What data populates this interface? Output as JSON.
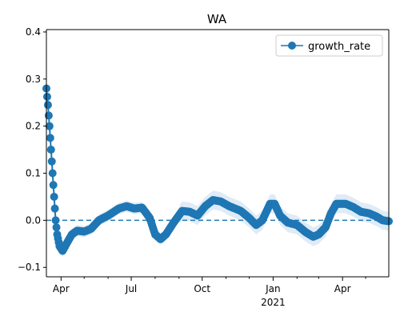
{
  "chart_data": {
    "type": "line",
    "title": "WA",
    "xlabel": "",
    "ylabel": "",
    "xlim": [
      "2020-03-13",
      "2021-05-31"
    ],
    "ylim": [
      -0.12,
      0.405
    ],
    "yticks": [
      -0.1,
      0.0,
      0.1,
      0.2,
      0.3,
      0.4
    ],
    "ytick_labels": [
      "−0.1",
      "0.0",
      "0.1",
      "0.2",
      "0.3",
      "0.4"
    ],
    "xticks_major": [
      {
        "date": "2020-04-01",
        "label": "Apr",
        "sublabel": ""
      },
      {
        "date": "2020-07-01",
        "label": "Jul",
        "sublabel": ""
      },
      {
        "date": "2020-10-01",
        "label": "Oct",
        "sublabel": ""
      },
      {
        "date": "2021-01-01",
        "label": "Jan",
        "sublabel": "2021"
      },
      {
        "date": "2021-04-01",
        "label": "Apr",
        "sublabel": ""
      }
    ],
    "xticks_minor": [
      "2020-05-01",
      "2020-06-01",
      "2020-08-01",
      "2020-09-01",
      "2020-11-01",
      "2020-12-01",
      "2021-02-01",
      "2021-03-01",
      "2021-05-01"
    ],
    "reference_line": {
      "y": 0.0,
      "style": "dashed",
      "color": "#1f77b4"
    },
    "legend": {
      "position": "top-right",
      "entries": [
        "growth_rate"
      ]
    },
    "grid": false,
    "series": [
      {
        "name": "growth_rate",
        "color": "#1f77b4",
        "marker": "circle",
        "band_color": "#dce9f5",
        "points": [
          {
            "date": "2020-03-13",
            "value": 0.28
          },
          {
            "date": "2020-03-15",
            "value": 0.245
          },
          {
            "date": "2020-03-17",
            "value": 0.2
          },
          {
            "date": "2020-03-19",
            "value": 0.15
          },
          {
            "date": "2020-03-21",
            "value": 0.1
          },
          {
            "date": "2020-03-23",
            "value": 0.05
          },
          {
            "date": "2020-03-25",
            "value": 0.0
          },
          {
            "date": "2020-03-27",
            "value": -0.03
          },
          {
            "date": "2020-03-30",
            "value": -0.055
          },
          {
            "date": "2020-04-03",
            "value": -0.065
          },
          {
            "date": "2020-04-08",
            "value": -0.05
          },
          {
            "date": "2020-04-15",
            "value": -0.03
          },
          {
            "date": "2020-04-22",
            "value": -0.022
          },
          {
            "date": "2020-05-01",
            "value": -0.024
          },
          {
            "date": "2020-05-10",
            "value": -0.018
          },
          {
            "date": "2020-05-20",
            "value": 0.0
          },
          {
            "date": "2020-06-01",
            "value": 0.01
          },
          {
            "date": "2020-06-15",
            "value": 0.025
          },
          {
            "date": "2020-06-25",
            "value": 0.03
          },
          {
            "date": "2020-07-05",
            "value": 0.025
          },
          {
            "date": "2020-07-15",
            "value": 0.027
          },
          {
            "date": "2020-07-25",
            "value": 0.005
          },
          {
            "date": "2020-08-01",
            "value": -0.03
          },
          {
            "date": "2020-08-08",
            "value": -0.04
          },
          {
            "date": "2020-08-15",
            "value": -0.03
          },
          {
            "date": "2020-08-25",
            "value": -0.005
          },
          {
            "date": "2020-09-05",
            "value": 0.02
          },
          {
            "date": "2020-09-15",
            "value": 0.018
          },
          {
            "date": "2020-09-25",
            "value": 0.01
          },
          {
            "date": "2020-10-05",
            "value": 0.03
          },
          {
            "date": "2020-10-15",
            "value": 0.043
          },
          {
            "date": "2020-10-25",
            "value": 0.04
          },
          {
            "date": "2020-11-05",
            "value": 0.03
          },
          {
            "date": "2020-11-20",
            "value": 0.02
          },
          {
            "date": "2020-12-01",
            "value": 0.005
          },
          {
            "date": "2020-12-10",
            "value": -0.01
          },
          {
            "date": "2020-12-18",
            "value": 0.0
          },
          {
            "date": "2020-12-28",
            "value": 0.035
          },
          {
            "date": "2021-01-03",
            "value": 0.035
          },
          {
            "date": "2021-01-10",
            "value": 0.01
          },
          {
            "date": "2021-01-20",
            "value": -0.005
          },
          {
            "date": "2021-02-01",
            "value": -0.01
          },
          {
            "date": "2021-02-12",
            "value": -0.025
          },
          {
            "date": "2021-02-22",
            "value": -0.035
          },
          {
            "date": "2021-03-01",
            "value": -0.03
          },
          {
            "date": "2021-03-10",
            "value": -0.015
          },
          {
            "date": "2021-03-17",
            "value": 0.015
          },
          {
            "date": "2021-03-24",
            "value": 0.035
          },
          {
            "date": "2021-04-05",
            "value": 0.035
          },
          {
            "date": "2021-04-15",
            "value": 0.028
          },
          {
            "date": "2021-04-25",
            "value": 0.018
          },
          {
            "date": "2021-05-05",
            "value": 0.015
          },
          {
            "date": "2021-05-15",
            "value": 0.008
          },
          {
            "date": "2021-05-23",
            "value": 0.0
          },
          {
            "date": "2021-05-31",
            "value": -0.002
          }
        ]
      }
    ]
  }
}
